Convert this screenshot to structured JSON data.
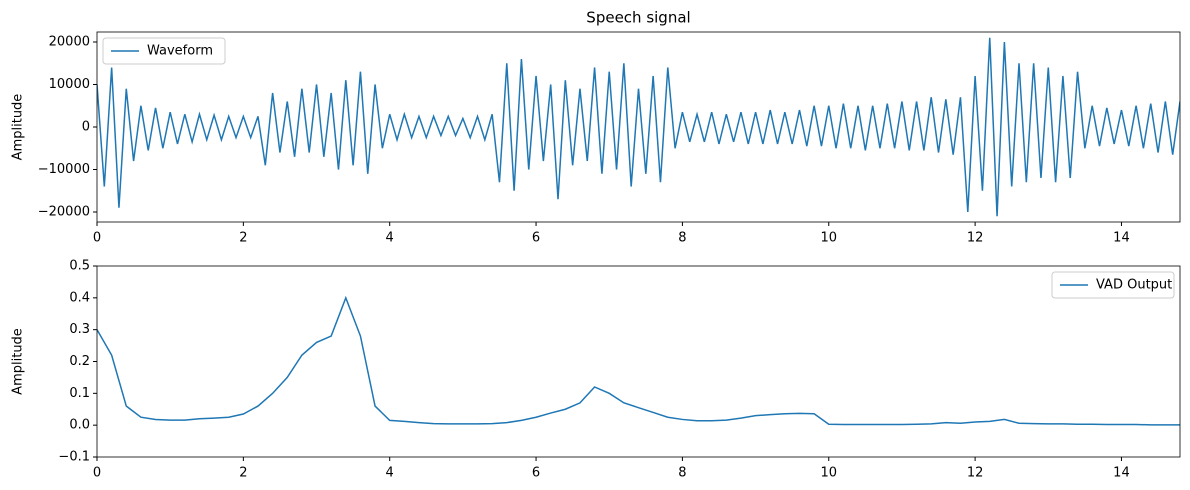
{
  "chart_data": [
    {
      "type": "line",
      "title": "Speech signal",
      "ylabel": "Amplitude",
      "legend": "upper left",
      "x": [
        0,
        0.1,
        0.2,
        0.3,
        0.4,
        0.5,
        0.6,
        0.7,
        0.8,
        0.9,
        1,
        1.1,
        1.2,
        1.3,
        1.4,
        1.5,
        1.6,
        1.7,
        1.8,
        1.9,
        2,
        2.1,
        2.2,
        2.3,
        2.4,
        2.5,
        2.6,
        2.7,
        2.8,
        2.9,
        3,
        3.1,
        3.2,
        3.3,
        3.4,
        3.5,
        3.6,
        3.7,
        3.8,
        3.9,
        4,
        4.1,
        4.2,
        4.3,
        4.4,
        4.5,
        4.6,
        4.7,
        4.8,
        4.9,
        5,
        5.1,
        5.2,
        5.3,
        5.4,
        5.5,
        5.6,
        5.7,
        5.8,
        5.9,
        6,
        6.1,
        6.2,
        6.3,
        6.4,
        6.5,
        6.6,
        6.7,
        6.8,
        6.9,
        7,
        7.1,
        7.2,
        7.3,
        7.4,
        7.5,
        7.6,
        7.7,
        7.8,
        7.9,
        8,
        8.1,
        8.2,
        8.3,
        8.4,
        8.5,
        8.6,
        8.7,
        8.8,
        8.9,
        9,
        9.1,
        9.2,
        9.3,
        9.4,
        9.5,
        9.6,
        9.7,
        9.8,
        9.9,
        10,
        10.1,
        10.2,
        10.3,
        10.4,
        10.5,
        10.6,
        10.7,
        10.8,
        10.9,
        11,
        11.1,
        11.2,
        11.3,
        11.4,
        11.5,
        11.6,
        11.7,
        11.8,
        11.9,
        12,
        12.1,
        12.2,
        12.3,
        12.4,
        12.5,
        12.6,
        12.7,
        12.8,
        12.9,
        13,
        13.1,
        13.2,
        13.3,
        13.4,
        13.5,
        13.6,
        13.7,
        13.8,
        13.9,
        14,
        14.1,
        14.2,
        14.3,
        14.4,
        14.5,
        14.6,
        14.7,
        14.8
      ],
      "series": [
        {
          "name": "Waveform",
          "color": "#1f77b4",
          "values": [
            10000,
            -14000,
            14000,
            -19000,
            9000,
            -8000,
            5000,
            -5500,
            4500,
            -5000,
            3500,
            -4000,
            3000,
            -3500,
            3000,
            -3000,
            2800,
            -3000,
            2500,
            -2500,
            2500,
            -2500,
            2500,
            -9000,
            8000,
            -6000,
            6000,
            -7000,
            9000,
            -6000,
            10000,
            -7000,
            8000,
            -10000,
            11000,
            -9000,
            13000,
            -11000,
            10000,
            -5000,
            3000,
            -3000,
            3000,
            -2500,
            2500,
            -2500,
            2500,
            -2000,
            2500,
            -2000,
            2000,
            -2500,
            2500,
            -3000,
            3000,
            -13000,
            15000,
            -15000,
            16000,
            -10000,
            12000,
            -8000,
            10000,
            -17000,
            11000,
            -9000,
            9000,
            -8000,
            14000,
            -11000,
            13000,
            -10000,
            15000,
            -14000,
            9000,
            -11000,
            12000,
            -13000,
            14000,
            -5000,
            3500,
            -3500,
            3000,
            -3500,
            3500,
            -4000,
            3000,
            -3500,
            3500,
            -4000,
            3500,
            -4000,
            4000,
            -4000,
            3500,
            -4000,
            4000,
            -4500,
            5000,
            -4500,
            5000,
            -5000,
            5500,
            -5000,
            5000,
            -5500,
            5000,
            -5000,
            5500,
            -5000,
            6000,
            -5500,
            6000,
            -5500,
            7000,
            -6000,
            6500,
            -6500,
            7000,
            -20000,
            12000,
            -15000,
            21000,
            -21000,
            20000,
            -14000,
            15000,
            -13000,
            15000,
            -12000,
            14000,
            -13000,
            12000,
            -12000,
            13000,
            -5000,
            5000,
            -4500,
            4500,
            -4000,
            4000,
            -4500,
            5000,
            -5000,
            5500,
            -6000,
            6000,
            -6500,
            6000
          ]
        }
      ],
      "xlim": [
        0,
        14.8
      ],
      "ylim": [
        -22350,
        22350
      ],
      "xticks": [
        0,
        2,
        4,
        6,
        8,
        10,
        12,
        14
      ],
      "yticks": [
        {
          "value": -20000,
          "label": "−20000"
        },
        {
          "value": -10000,
          "label": "−10000"
        },
        0,
        10000,
        20000
      ]
    },
    {
      "type": "line",
      "ylabel": "Amplitude",
      "legend": "upper right",
      "x": [
        0,
        0.2,
        0.4,
        0.6,
        0.8,
        1,
        1.2,
        1.4,
        1.6,
        1.8,
        2,
        2.2,
        2.4,
        2.6,
        2.8,
        3,
        3.2,
        3.4,
        3.6,
        3.8,
        4,
        4.2,
        4.4,
        4.6,
        4.8,
        5,
        5.2,
        5.4,
        5.6,
        5.8,
        6,
        6.2,
        6.4,
        6.6,
        6.8,
        7,
        7.2,
        7.4,
        7.6,
        7.8,
        8,
        8.2,
        8.4,
        8.6,
        8.8,
        9,
        9.2,
        9.4,
        9.6,
        9.8,
        10,
        10.2,
        10.4,
        10.6,
        10.8,
        11,
        11.2,
        11.4,
        11.6,
        11.8,
        12,
        12.2,
        12.4,
        12.6,
        12.8,
        13,
        13.2,
        13.4,
        13.6,
        13.8,
        14,
        14.2,
        14.4,
        14.6,
        14.8
      ],
      "series": [
        {
          "name": "VAD Output",
          "color": "#1f77b4",
          "values": [
            0.3,
            0.22,
            0.06,
            0.025,
            0.018,
            0.016,
            0.016,
            0.02,
            0.022,
            0.025,
            0.035,
            0.06,
            0.1,
            0.15,
            0.22,
            0.26,
            0.28,
            0.4,
            0.28,
            0.06,
            0.015,
            0.012,
            0.008,
            0.005,
            0.004,
            0.004,
            0.004,
            0.005,
            0.008,
            0.015,
            0.025,
            0.038,
            0.05,
            0.07,
            0.12,
            0.1,
            0.07,
            0.055,
            0.04,
            0.025,
            0.018,
            0.014,
            0.014,
            0.016,
            0.022,
            0.03,
            0.033,
            0.036,
            0.037,
            0.036,
            0.003,
            0.002,
            0.002,
            0.002,
            0.002,
            0.002,
            0.003,
            0.004,
            0.008,
            0.006,
            0.01,
            0.012,
            0.018,
            0.006,
            0.005,
            0.004,
            0.004,
            0.003,
            0.003,
            0.002,
            0.002,
            0.002,
            0.001,
            0.001,
            0.001
          ]
        }
      ],
      "xlim": [
        0,
        14.8
      ],
      "ylim": [
        -0.1,
        0.5
      ],
      "xticks": [
        0,
        2,
        4,
        6,
        8,
        10,
        12,
        14
      ],
      "yticks": [
        {
          "value": -0.1,
          "label": "−0.1"
        },
        {
          "value": 0,
          "label": "0.0"
        },
        0.1,
        0.2,
        0.3,
        0.4,
        0.5
      ]
    }
  ]
}
